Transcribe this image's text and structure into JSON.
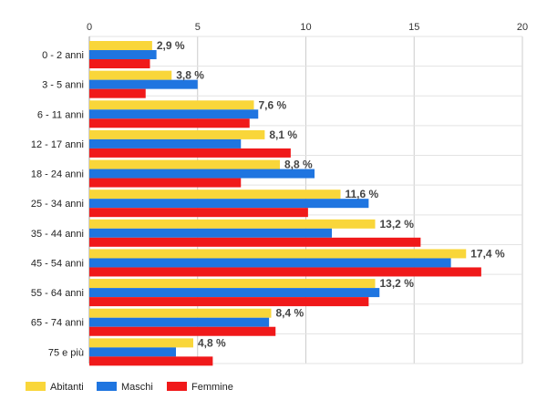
{
  "chart_data": {
    "type": "bar",
    "orientation": "horizontal",
    "title": "",
    "xlabel": "",
    "ylabel": "",
    "xlim": [
      0,
      20
    ],
    "x_ticks": [
      0,
      5,
      10,
      15,
      20
    ],
    "grid": true,
    "legend_position": "bottom-left",
    "categories": [
      "0 - 2 anni",
      "3 - 5 anni",
      "6 - 11 anni",
      "12 - 17 anni",
      "18 - 24 anni",
      "25 - 34 anni",
      "35 - 44 anni",
      "45 - 54 anni",
      "55 - 64 anni",
      "65 - 74 anni",
      "75 e più"
    ],
    "series": [
      {
        "name": "Abitanti",
        "color": "#F9D63A",
        "values": [
          2.9,
          3.8,
          7.6,
          8.1,
          8.8,
          11.6,
          13.2,
          17.4,
          13.2,
          8.4,
          4.8
        ]
      },
      {
        "name": "Maschi",
        "color": "#1F75E0",
        "values": [
          3.1,
          5.0,
          7.8,
          7.0,
          10.4,
          12.9,
          11.2,
          16.7,
          13.4,
          8.3,
          4.0
        ]
      },
      {
        "name": "Femmine",
        "color": "#F0191A",
        "values": [
          2.8,
          2.6,
          7.4,
          9.3,
          7.0,
          10.1,
          15.3,
          18.1,
          12.9,
          8.6,
          5.7
        ]
      }
    ],
    "data_labels": [
      "2,9 %",
      "3,8 %",
      "7,6 %",
      "8,1 %",
      "8,8 %",
      "11,6 %",
      "13,2 %",
      "17,4 %",
      "13,2 %",
      "8,4 %",
      "4,8 %"
    ]
  }
}
